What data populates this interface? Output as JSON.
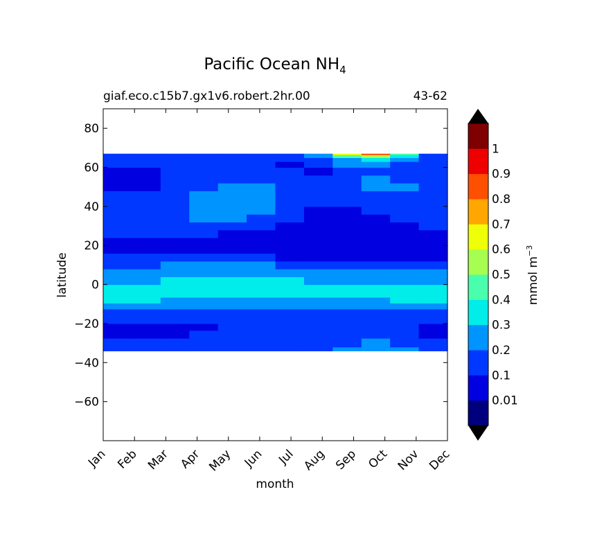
{
  "title": "Pacific Ocean NH",
  "title_subscript": "4",
  "subtitle_left": "giaf.eco.c15b7.gx1v6.robert.2hr.00",
  "subtitle_right": "43-62",
  "colorbar_label": "mmol m",
  "colorbar_label_exponent": "−3",
  "chart_data": {
    "type": "heatmap",
    "title": "Pacific Ocean NH₄",
    "subtitle_left": "giaf.eco.c15b7.gx1v6.robert.2hr.00",
    "subtitle_right": "43-62",
    "xlabel": "month",
    "ylabel": "latitude",
    "x_categories": [
      "Jan",
      "Feb",
      "Mar",
      "Apr",
      "May",
      "Jun",
      "Jul",
      "Aug",
      "Sep",
      "Oct",
      "Nov",
      "Dec"
    ],
    "x_ticks": [
      "Jan",
      "Feb",
      "Mar",
      "Apr",
      "May",
      "Jun",
      "Jul",
      "Aug",
      "Sep",
      "Oct",
      "Nov",
      "Dec"
    ],
    "y_ticks": [
      80,
      60,
      40,
      20,
      0,
      -20,
      -40,
      -60
    ],
    "y_tick_labels": [
      "80",
      "60",
      "40",
      "20",
      "0",
      "−20",
      "−40",
      "−60"
    ],
    "ylim": [
      -80,
      90
    ],
    "data_lat_range": [
      -34,
      67
    ],
    "grid": false,
    "colorbar": {
      "label": "mmol m⁻³",
      "levels": [
        0,
        0.01,
        0.1,
        0.2,
        0.3,
        0.4,
        0.5,
        0.6,
        0.7,
        0.8,
        0.9,
        1,
        1.1
      ],
      "tick_values": [
        0.01,
        0.1,
        0.2,
        0.3,
        0.4,
        0.5,
        0.6,
        0.7,
        0.8,
        0.9,
        1
      ],
      "tick_labels": [
        "0.01",
        "0.1",
        "0.2",
        "0.3",
        "0.4",
        "0.5",
        "0.6",
        "0.7",
        "0.8",
        "0.9",
        "1"
      ],
      "colors": [
        "#00007f",
        "#0000e1",
        "#0038ff",
        "#0094ff",
        "#00ede9",
        "#49ffad",
        "#a6ff50",
        "#efff07",
        "#ffa700",
        "#ff4f00",
        "#ee0000",
        "#7f0000"
      ],
      "extend_colors": {
        "under": "#000000",
        "over": "#000000"
      }
    },
    "latitudes": [
      -34,
      -30,
      -25,
      -22,
      -18,
      -14,
      -11,
      -8,
      -5,
      -2,
      2,
      6,
      10,
      14,
      18,
      22,
      26,
      30,
      34,
      38,
      42,
      46,
      50,
      54,
      58,
      62,
      64,
      66,
      67
    ],
    "values": [
      [
        0.15,
        0.15,
        0.15,
        0.15,
        0.15,
        0.15,
        0.15,
        0.15,
        0.22,
        0.22,
        0.22,
        0.15
      ],
      [
        0.15,
        0.15,
        0.15,
        0.15,
        0.15,
        0.15,
        0.15,
        0.15,
        0.15,
        0.22,
        0.15,
        0.15
      ],
      [
        0.08,
        0.08,
        0.08,
        0.15,
        0.15,
        0.15,
        0.15,
        0.15,
        0.15,
        0.15,
        0.15,
        0.08
      ],
      [
        0.08,
        0.08,
        0.08,
        0.08,
        0.15,
        0.15,
        0.15,
        0.15,
        0.15,
        0.15,
        0.15,
        0.08
      ],
      [
        0.15,
        0.15,
        0.15,
        0.15,
        0.15,
        0.15,
        0.15,
        0.15,
        0.15,
        0.15,
        0.15,
        0.15
      ],
      [
        0.15,
        0.15,
        0.15,
        0.15,
        0.15,
        0.15,
        0.15,
        0.15,
        0.15,
        0.15,
        0.15,
        0.15
      ],
      [
        0.25,
        0.25,
        0.25,
        0.25,
        0.25,
        0.25,
        0.25,
        0.25,
        0.25,
        0.25,
        0.25,
        0.25
      ],
      [
        0.35,
        0.35,
        0.25,
        0.25,
        0.25,
        0.25,
        0.25,
        0.25,
        0.25,
        0.25,
        0.35,
        0.35
      ],
      [
        0.35,
        0.35,
        0.35,
        0.35,
        0.35,
        0.35,
        0.35,
        0.35,
        0.35,
        0.35,
        0.35,
        0.35
      ],
      [
        0.35,
        0.35,
        0.35,
        0.35,
        0.35,
        0.35,
        0.35,
        0.35,
        0.35,
        0.35,
        0.35,
        0.35
      ],
      [
        0.25,
        0.25,
        0.35,
        0.35,
        0.35,
        0.35,
        0.35,
        0.25,
        0.25,
        0.25,
        0.25,
        0.25
      ],
      [
        0.25,
        0.25,
        0.25,
        0.25,
        0.25,
        0.25,
        0.25,
        0.25,
        0.25,
        0.25,
        0.25,
        0.25
      ],
      [
        0.15,
        0.15,
        0.25,
        0.25,
        0.25,
        0.25,
        0.15,
        0.15,
        0.15,
        0.15,
        0.15,
        0.15
      ],
      [
        0.15,
        0.15,
        0.15,
        0.15,
        0.15,
        0.15,
        0.08,
        0.08,
        0.08,
        0.08,
        0.08,
        0.08
      ],
      [
        0.08,
        0.08,
        0.08,
        0.08,
        0.08,
        0.08,
        0.08,
        0.08,
        0.08,
        0.08,
        0.08,
        0.08
      ],
      [
        0.08,
        0.08,
        0.08,
        0.08,
        0.08,
        0.08,
        0.08,
        0.08,
        0.08,
        0.08,
        0.08,
        0.08
      ],
      [
        0.15,
        0.15,
        0.15,
        0.15,
        0.08,
        0.08,
        0.08,
        0.08,
        0.08,
        0.08,
        0.08,
        0.08
      ],
      [
        0.15,
        0.15,
        0.15,
        0.15,
        0.15,
        0.15,
        0.08,
        0.08,
        0.08,
        0.08,
        0.08,
        0.15
      ],
      [
        0.15,
        0.15,
        0.15,
        0.25,
        0.25,
        0.15,
        0.15,
        0.08,
        0.08,
        0.08,
        0.15,
        0.15
      ],
      [
        0.15,
        0.15,
        0.15,
        0.25,
        0.25,
        0.25,
        0.15,
        0.08,
        0.08,
        0.15,
        0.15,
        0.15
      ],
      [
        0.15,
        0.15,
        0.15,
        0.25,
        0.25,
        0.25,
        0.15,
        0.15,
        0.15,
        0.15,
        0.15,
        0.15
      ],
      [
        0.15,
        0.15,
        0.15,
        0.25,
        0.25,
        0.25,
        0.15,
        0.15,
        0.15,
        0.15,
        0.15,
        0.15
      ],
      [
        0.08,
        0.08,
        0.15,
        0.15,
        0.25,
        0.25,
        0.15,
        0.15,
        0.15,
        0.25,
        0.25,
        0.15
      ],
      [
        0.08,
        0.08,
        0.15,
        0.15,
        0.15,
        0.15,
        0.15,
        0.15,
        0.15,
        0.25,
        0.15,
        0.15
      ],
      [
        0.08,
        0.08,
        0.15,
        0.15,
        0.15,
        0.15,
        0.15,
        0.08,
        0.15,
        0.15,
        0.15,
        0.15
      ],
      [
        0.15,
        0.15,
        0.15,
        0.15,
        0.15,
        0.15,
        0.08,
        0.15,
        0.25,
        0.25,
        0.15,
        0.15
      ],
      [
        0.15,
        0.15,
        0.15,
        0.15,
        0.15,
        0.15,
        0.15,
        0.15,
        0.25,
        0.35,
        0.25,
        0.15
      ],
      [
        0.15,
        0.15,
        0.15,
        0.15,
        0.15,
        0.15,
        0.15,
        0.25,
        0.45,
        0.55,
        0.35,
        0.15
      ],
      [
        0.15,
        0.15,
        0.15,
        0.15,
        0.15,
        0.15,
        0.15,
        0.25,
        0.65,
        0.85,
        0.45,
        0.15
      ]
    ]
  }
}
